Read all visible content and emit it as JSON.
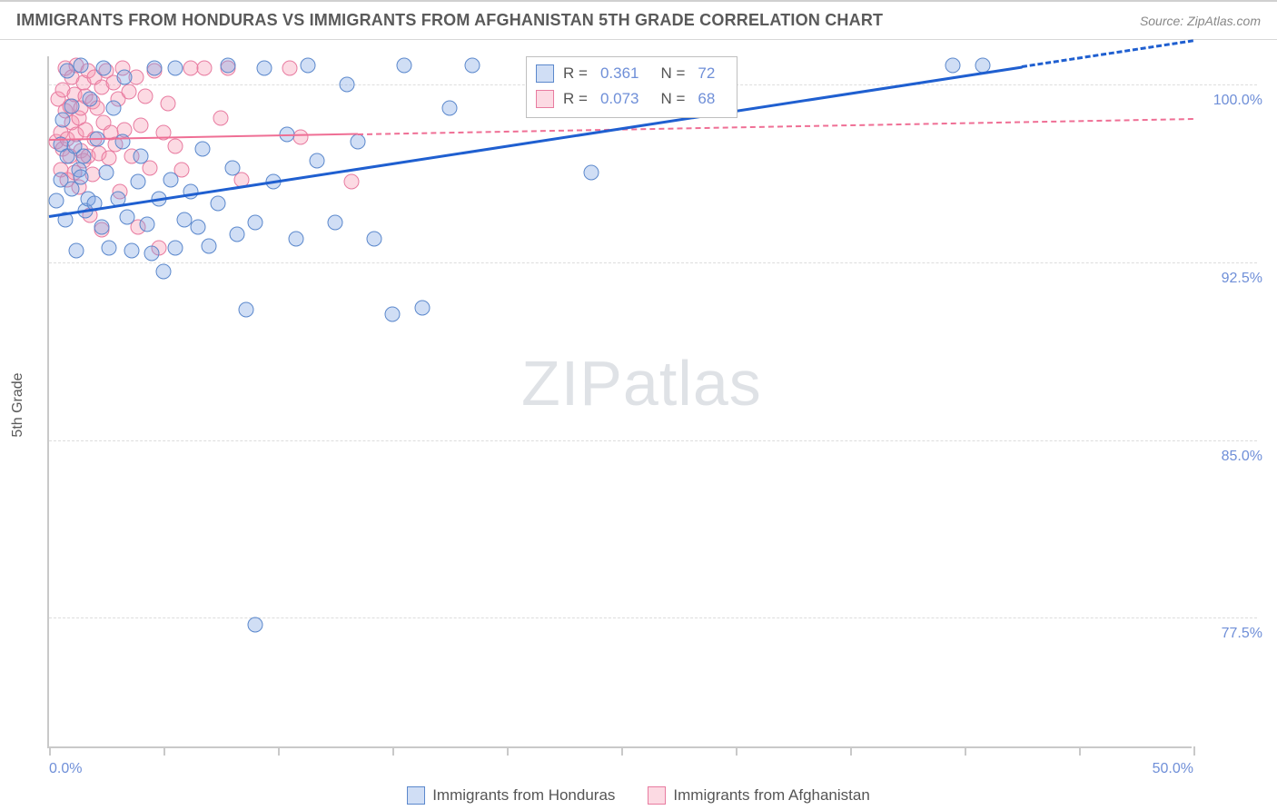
{
  "header": {
    "title": "IMMIGRANTS FROM HONDURAS VS IMMIGRANTS FROM AFGHANISTAN 5TH GRADE CORRELATION CHART",
    "source": "Source: ZipAtlas.com"
  },
  "yaxis_title": "5th Grade",
  "watermark": {
    "a": "ZIP",
    "b": "atlas"
  },
  "legend": {
    "s1": "Immigrants from Honduras",
    "s2": "Immigrants from Afghanistan"
  },
  "corr_box": {
    "r_label": "R =",
    "n_label": "N =",
    "s1_r": "0.361",
    "s1_n": "72",
    "s2_r": "0.073",
    "s2_n": "68"
  },
  "chart": {
    "type": "scatter",
    "background_color": "#ffffff",
    "grid_color": "#dddddd",
    "axis_color": "#c9c9c9",
    "tick_label_color": "#6f8fd8",
    "tick_fontsize": 16,
    "title_fontsize": 18,
    "xlim": [
      0.0,
      50.0
    ],
    "ylim": [
      72.0,
      101.2
    ],
    "xticks": [
      0.0,
      5.0,
      10.0,
      15.0,
      20.0,
      25.0,
      30.0,
      35.0,
      40.0,
      45.0,
      50.0
    ],
    "xtick_labels": {
      "0": "0.0%",
      "50": "50.0%"
    },
    "yticks": [
      77.5,
      85.0,
      92.5,
      100.0
    ],
    "ytick_labels": [
      "77.5%",
      "85.0%",
      "92.5%",
      "100.0%"
    ],
    "marker_radius": 8.5,
    "marker_stroke": 1.4,
    "series1": {
      "name": "Immigrants from Honduras",
      "fill": "rgba(120,160,225,0.35)",
      "stroke": "#5b88cc",
      "trend": {
        "color": "#1f5fd0",
        "width": 3,
        "solid_x": [
          0.0,
          42.5
        ],
        "solid_y": [
          94.5,
          100.8
        ],
        "dash_x": [
          42.5,
          50.0
        ],
        "dash_y": [
          100.8,
          101.9
        ]
      },
      "points": [
        [
          0.3,
          95.1
        ],
        [
          0.5,
          96.0
        ],
        [
          0.5,
          97.5
        ],
        [
          0.6,
          98.5
        ],
        [
          0.7,
          94.3
        ],
        [
          0.8,
          97.0
        ],
        [
          0.8,
          100.6
        ],
        [
          1.0,
          95.6
        ],
        [
          1.0,
          99.1
        ],
        [
          1.1,
          97.4
        ],
        [
          1.2,
          93.0
        ],
        [
          1.3,
          96.4
        ],
        [
          1.4,
          96.1
        ],
        [
          1.4,
          100.8
        ],
        [
          1.5,
          97.0
        ],
        [
          1.6,
          94.7
        ],
        [
          1.7,
          95.2
        ],
        [
          1.8,
          99.4
        ],
        [
          2.0,
          95.0
        ],
        [
          2.1,
          97.7
        ],
        [
          2.3,
          94.0
        ],
        [
          2.4,
          100.7
        ],
        [
          2.5,
          96.3
        ],
        [
          2.6,
          93.1
        ],
        [
          2.8,
          99.0
        ],
        [
          3.0,
          95.2
        ],
        [
          3.2,
          97.6
        ],
        [
          3.3,
          100.3
        ],
        [
          3.4,
          94.4
        ],
        [
          3.6,
          93.0
        ],
        [
          3.9,
          95.9
        ],
        [
          4.0,
          97.0
        ],
        [
          4.3,
          94.1
        ],
        [
          4.5,
          92.9
        ],
        [
          4.6,
          100.7
        ],
        [
          4.8,
          95.2
        ],
        [
          5.0,
          92.1
        ],
        [
          5.3,
          96.0
        ],
        [
          5.5,
          93.1
        ],
        [
          5.5,
          100.7
        ],
        [
          5.9,
          94.3
        ],
        [
          6.2,
          95.5
        ],
        [
          6.5,
          94.0
        ],
        [
          6.7,
          97.3
        ],
        [
          7.0,
          93.2
        ],
        [
          7.4,
          95.0
        ],
        [
          7.8,
          100.8
        ],
        [
          8.0,
          96.5
        ],
        [
          8.2,
          93.7
        ],
        [
          8.6,
          90.5
        ],
        [
          9.0,
          94.2
        ],
        [
          9.0,
          77.2
        ],
        [
          9.4,
          100.7
        ],
        [
          9.8,
          95.9
        ],
        [
          10.4,
          97.9
        ],
        [
          10.8,
          93.5
        ],
        [
          11.3,
          100.8
        ],
        [
          11.7,
          96.8
        ],
        [
          12.5,
          94.2
        ],
        [
          13.0,
          100.0
        ],
        [
          13.5,
          97.6
        ],
        [
          14.2,
          93.5
        ],
        [
          15.0,
          90.3
        ],
        [
          15.5,
          100.8
        ],
        [
          16.3,
          90.6
        ],
        [
          17.5,
          99.0
        ],
        [
          18.5,
          100.8
        ],
        [
          23.7,
          96.3
        ],
        [
          26.0,
          100.7
        ],
        [
          27.0,
          100.8
        ],
        [
          39.5,
          100.8
        ],
        [
          40.8,
          100.8
        ]
      ]
    },
    "series2": {
      "name": "Immigrants from Afghanistan",
      "fill": "rgba(245,150,175,0.35)",
      "stroke": "#e87ba0",
      "trend": {
        "color": "#ef6f95",
        "width": 2.5,
        "solid_x": [
          0.0,
          13.5
        ],
        "solid_y": [
          97.7,
          97.95
        ],
        "dash_x": [
          13.5,
          50.0
        ],
        "dash_y": [
          97.95,
          98.6
        ]
      },
      "points": [
        [
          0.3,
          97.6
        ],
        [
          0.4,
          99.4
        ],
        [
          0.5,
          98.0
        ],
        [
          0.5,
          96.4
        ],
        [
          0.6,
          97.3
        ],
        [
          0.6,
          99.8
        ],
        [
          0.7,
          98.9
        ],
        [
          0.7,
          100.7
        ],
        [
          0.8,
          97.7
        ],
        [
          0.8,
          96.0
        ],
        [
          0.9,
          99.1
        ],
        [
          0.9,
          97.0
        ],
        [
          1.0,
          100.3
        ],
        [
          1.0,
          98.4
        ],
        [
          1.1,
          99.6
        ],
        [
          1.1,
          96.3
        ],
        [
          1.2,
          97.9
        ],
        [
          1.2,
          100.8
        ],
        [
          1.3,
          98.6
        ],
        [
          1.3,
          95.7
        ],
        [
          1.4,
          99.0
        ],
        [
          1.4,
          97.2
        ],
        [
          1.5,
          100.1
        ],
        [
          1.5,
          96.8
        ],
        [
          1.6,
          98.1
        ],
        [
          1.6,
          99.5
        ],
        [
          1.7,
          97.0
        ],
        [
          1.7,
          100.6
        ],
        [
          1.8,
          94.5
        ],
        [
          1.9,
          99.3
        ],
        [
          1.9,
          96.2
        ],
        [
          2.0,
          97.7
        ],
        [
          2.0,
          100.3
        ],
        [
          2.1,
          99.0
        ],
        [
          2.2,
          97.1
        ],
        [
          2.3,
          99.9
        ],
        [
          2.3,
          93.9
        ],
        [
          2.4,
          98.4
        ],
        [
          2.5,
          100.6
        ],
        [
          2.6,
          96.9
        ],
        [
          2.7,
          98.0
        ],
        [
          2.8,
          100.1
        ],
        [
          2.9,
          97.5
        ],
        [
          3.0,
          99.4
        ],
        [
          3.1,
          95.5
        ],
        [
          3.2,
          100.7
        ],
        [
          3.3,
          98.1
        ],
        [
          3.5,
          99.7
        ],
        [
          3.6,
          97.0
        ],
        [
          3.8,
          100.3
        ],
        [
          3.9,
          94.0
        ],
        [
          4.0,
          98.3
        ],
        [
          4.2,
          99.5
        ],
        [
          4.4,
          96.5
        ],
        [
          4.6,
          100.6
        ],
        [
          4.8,
          93.1
        ],
        [
          5.0,
          98.0
        ],
        [
          5.2,
          99.2
        ],
        [
          5.5,
          97.4
        ],
        [
          5.8,
          96.4
        ],
        [
          6.2,
          100.7
        ],
        [
          6.8,
          100.7
        ],
        [
          7.5,
          98.6
        ],
        [
          7.8,
          100.7
        ],
        [
          8.4,
          96.0
        ],
        [
          10.5,
          100.7
        ],
        [
          11.0,
          97.8
        ],
        [
          13.2,
          95.9
        ]
      ]
    }
  }
}
